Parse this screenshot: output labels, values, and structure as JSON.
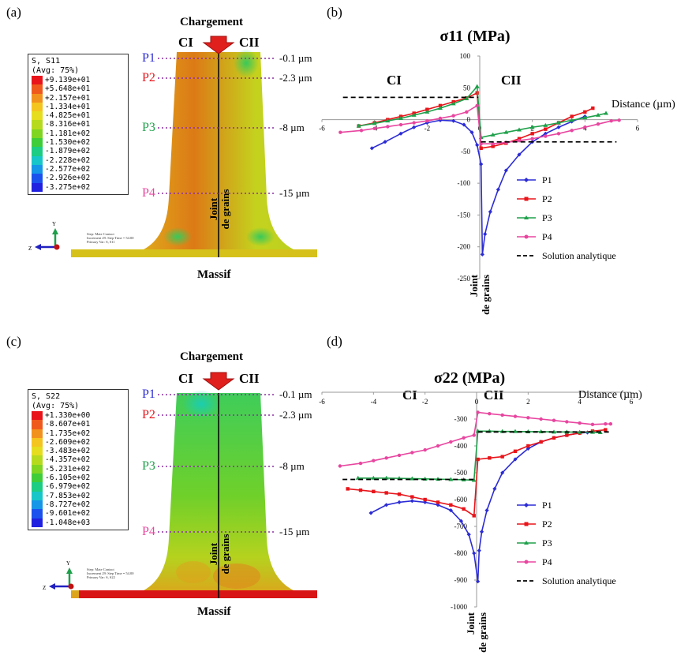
{
  "panels": {
    "a": {
      "letter": "(a)",
      "loading": "Chargement",
      "ci": "CI",
      "cii": "CII",
      "massif": "Massif",
      "joint1": "Joint",
      "joint2": "de grains",
      "legend": {
        "title1": "S, S11",
        "title2": "(Avg: 75%)",
        "values": [
          "+9.139e+01",
          "+5.648e+01",
          "+2.157e+01",
          "-1.334e+01",
          "-4.825e+01",
          "-8.316e+01",
          "-1.181e+02",
          "-1.530e+02",
          "-1.879e+02",
          "-2.228e+02",
          "-2.577e+02",
          "-2.926e+02",
          "-3.275e+02"
        ],
        "colors": [
          "#e8141a",
          "#ef5a1c",
          "#f2921e",
          "#f4c41f",
          "#e5dd1e",
          "#b6db1e",
          "#7fd522",
          "#3fcd3a",
          "#1ccd83",
          "#17c6c8",
          "#1596e6",
          "#1b52ee",
          "#2020e0"
        ]
      },
      "probes": [
        {
          "name": "P1",
          "depth": "-0.1 µm",
          "color": "#2b2bd6"
        },
        {
          "name": "P2",
          "depth": "-2.3 µm",
          "color": "#e8141a"
        },
        {
          "name": "P3",
          "depth": "-8 µm",
          "color": "#1ea04a"
        },
        {
          "name": "P4",
          "depth": "-15 µm",
          "color": "#e8459f"
        }
      ]
    },
    "c": {
      "letter": "(c)",
      "loading": "Chargement",
      "ci": "CI",
      "cii": "CII",
      "massif": "Massif",
      "joint1": "Joint",
      "joint2": "de grains",
      "legend": {
        "title1": "S, S22",
        "title2": "(Avg: 75%)",
        "values": [
          "+1.330e+00",
          "-8.607e+01",
          "-1.735e+02",
          "-2.609e+02",
          "-3.483e+02",
          "-4.357e+02",
          "-5.231e+02",
          "-6.105e+02",
          "-6.979e+02",
          "-7.853e+02",
          "-8.727e+02",
          "-9.601e+02",
          "-1.048e+03"
        ],
        "colors": [
          "#e8141a",
          "#ef5a1c",
          "#f2921e",
          "#f4c41f",
          "#e5dd1e",
          "#b6db1e",
          "#7fd522",
          "#3fcd3a",
          "#1ccd83",
          "#17c6c8",
          "#1596e6",
          "#1b52ee",
          "#2020e0"
        ]
      },
      "probes": [
        {
          "name": "P1",
          "depth": "-0.1 µm",
          "color": "#2b2bd6"
        },
        {
          "name": "P2",
          "depth": "-2.3 µm",
          "color": "#e8141a"
        },
        {
          "name": "P3",
          "depth": "-8 µm",
          "color": "#1ea04a"
        },
        {
          "name": "P4",
          "depth": "-15 µm",
          "color": "#e8459f"
        }
      ]
    },
    "b": {
      "letter": "(b)"
    },
    "d": {
      "letter": "(d)"
    }
  },
  "chart_data": [
    {
      "type": "line",
      "title": "σ11 (MPa)",
      "xlabel": "Distance (µm)",
      "region_left": "CI",
      "region_right": "CII",
      "grain_boundary_label": [
        "Joint",
        "de grains"
      ],
      "xlim": [
        -6,
        6
      ],
      "ylim": [
        -250,
        100
      ],
      "xticks": [
        -6,
        -4,
        -2,
        0,
        2,
        4,
        6
      ],
      "yticks": [
        100,
        50,
        0,
        -50,
        -100,
        -150,
        -200,
        -250
      ],
      "series": [
        {
          "name": "P1",
          "color": "#2b2bd6",
          "marker": "diamond",
          "x": [
            -4.1,
            -3.6,
            -3.0,
            -2.5,
            -2.0,
            -1.5,
            -1.0,
            -0.6,
            -0.3,
            -0.1,
            0.05,
            0.1,
            0.2,
            0.4,
            0.7,
            1.0,
            1.5,
            2.0,
            2.5,
            3.0,
            3.5,
            4.0
          ],
          "y": [
            -45,
            -35,
            -22,
            -12,
            -5,
            -1,
            -2,
            -8,
            -20,
            -40,
            -70,
            -212,
            -180,
            -145,
            -110,
            -80,
            -55,
            -35,
            -22,
            -12,
            -3,
            5
          ]
        },
        {
          "name": "P2",
          "color": "#e8141a",
          "marker": "square",
          "x": [
            -4.6,
            -4.0,
            -3.5,
            -3.0,
            -2.5,
            -2.0,
            -1.5,
            -1.0,
            -0.5,
            -0.1,
            0.05,
            0.5,
            1.0,
            1.5,
            2.0,
            2.5,
            3.0,
            3.5,
            4.0,
            4.3
          ],
          "y": [
            -10,
            -5,
            0,
            5,
            10,
            16,
            22,
            28,
            34,
            42,
            -45,
            -42,
            -37,
            -30,
            -22,
            -15,
            -5,
            5,
            12,
            18
          ]
        },
        {
          "name": "P3",
          "color": "#1ea04a",
          "marker": "triangle",
          "x": [
            -4.6,
            -4.0,
            -3.5,
            -3.0,
            -2.5,
            -2.0,
            -1.5,
            -1.0,
            -0.5,
            -0.1,
            0.05,
            0.5,
            1.0,
            1.5,
            2.0,
            2.5,
            3.0,
            3.5,
            4.0,
            4.5,
            4.8
          ],
          "y": [
            -10,
            -6,
            -2,
            2,
            7,
            12,
            18,
            25,
            33,
            52,
            -28,
            -24,
            -20,
            -16,
            -12,
            -9,
            -5,
            -1,
            3,
            7,
            10
          ]
        },
        {
          "name": "P4",
          "color": "#e8459f",
          "marker": "circle",
          "x": [
            -5.3,
            -4.5,
            -4.0,
            -3.5,
            -3.0,
            -2.5,
            -2.0,
            -1.5,
            -1.0,
            -0.5,
            -0.1,
            0.05,
            0.5,
            1.0,
            1.5,
            2.0,
            2.5,
            3.0,
            3.5,
            4.0,
            4.5,
            5.0,
            5.3
          ],
          "y": [
            -20,
            -17,
            -14,
            -11,
            -8,
            -5,
            -2,
            2,
            6,
            12,
            22,
            -38,
            -38,
            -36,
            -33,
            -30,
            -26,
            -22,
            -17,
            -12,
            -7,
            -2,
            -1
          ]
        },
        {
          "name": "Solution analytique",
          "color": "#000000",
          "marker": "none",
          "dashed": true,
          "x": [
            -5.2,
            -0.05,
            0.05,
            5.2
          ],
          "y": [
            35,
            35,
            -35,
            -35
          ]
        }
      ]
    },
    {
      "type": "line",
      "title": "σ22 (MPa)",
      "xlabel": "Distance (µm)",
      "region_left": "CI",
      "region_right": "CII",
      "grain_boundary_label": [
        "Joint",
        "de grains"
      ],
      "xlim": [
        -6,
        6
      ],
      "ylim": [
        -1000,
        -200
      ],
      "xticks": [
        -6,
        -4,
        -2,
        0,
        2,
        4,
        6
      ],
      "yticks": [
        -300,
        -400,
        -500,
        -600,
        -700,
        -800,
        -900,
        -1000
      ],
      "series": [
        {
          "name": "P1",
          "color": "#2b2bd6",
          "marker": "diamond",
          "x": [
            -4.1,
            -3.5,
            -3.0,
            -2.5,
            -2.0,
            -1.5,
            -1.0,
            -0.6,
            -0.3,
            -0.1,
            0.05,
            0.1,
            0.2,
            0.4,
            0.7,
            1.0,
            1.5,
            2.0,
            2.5,
            3.0,
            3.5,
            4.0,
            4.3
          ],
          "y": [
            -650,
            -620,
            -610,
            -605,
            -610,
            -620,
            -640,
            -680,
            -730,
            -800,
            -905,
            -790,
            -720,
            -640,
            -560,
            -500,
            -450,
            -410,
            -385,
            -370,
            -360,
            -352,
            -350
          ]
        },
        {
          "name": "P2",
          "color": "#e8141a",
          "marker": "square",
          "x": [
            -5.0,
            -4.5,
            -4.0,
            -3.5,
            -3.0,
            -2.5,
            -2.0,
            -1.5,
            -1.0,
            -0.5,
            -0.1,
            0.05,
            0.5,
            1.0,
            1.5,
            2.0,
            2.5,
            3.0,
            3.5,
            4.0,
            4.5,
            5.0
          ],
          "y": [
            -560,
            -565,
            -570,
            -575,
            -580,
            -590,
            -600,
            -610,
            -620,
            -635,
            -660,
            -450,
            -445,
            -440,
            -420,
            -400,
            -385,
            -370,
            -360,
            -352,
            -345,
            -340
          ]
        },
        {
          "name": "P3",
          "color": "#1ea04a",
          "marker": "triangle",
          "x": [
            -4.6,
            -4.0,
            -3.5,
            -3.0,
            -2.5,
            -2.0,
            -1.5,
            -1.0,
            -0.5,
            -0.1,
            0.05,
            0.5,
            1.0,
            1.5,
            2.0,
            2.5,
            3.0,
            3.5,
            4.0,
            4.5,
            4.8
          ],
          "y": [
            -520,
            -520,
            -520,
            -521,
            -522,
            -523,
            -524,
            -525,
            -526,
            -528,
            -345,
            -345,
            -346,
            -346,
            -347,
            -347,
            -348,
            -348,
            -349,
            -349,
            -350
          ]
        },
        {
          "name": "P4",
          "color": "#e8459f",
          "marker": "circle",
          "x": [
            -5.3,
            -4.5,
            -4.0,
            -3.5,
            -3.0,
            -2.5,
            -2.0,
            -1.5,
            -1.0,
            -0.5,
            -0.1,
            0.05,
            0.5,
            1.0,
            1.5,
            2.0,
            2.5,
            3.0,
            3.5,
            4.0,
            4.5,
            5.0,
            5.2
          ],
          "y": [
            -475,
            -465,
            -455,
            -445,
            -435,
            -425,
            -415,
            -400,
            -385,
            -370,
            -360,
            -275,
            -280,
            -285,
            -290,
            -295,
            -300,
            -305,
            -310,
            -315,
            -320,
            -318,
            -318
          ]
        },
        {
          "name": "Solution analytique",
          "color": "#000000",
          "marker": "none",
          "dashed": true,
          "x": [
            -5.2,
            -0.05,
            0.05,
            5.2
          ],
          "y": [
            -525,
            -525,
            -348,
            -348
          ]
        }
      ]
    }
  ]
}
